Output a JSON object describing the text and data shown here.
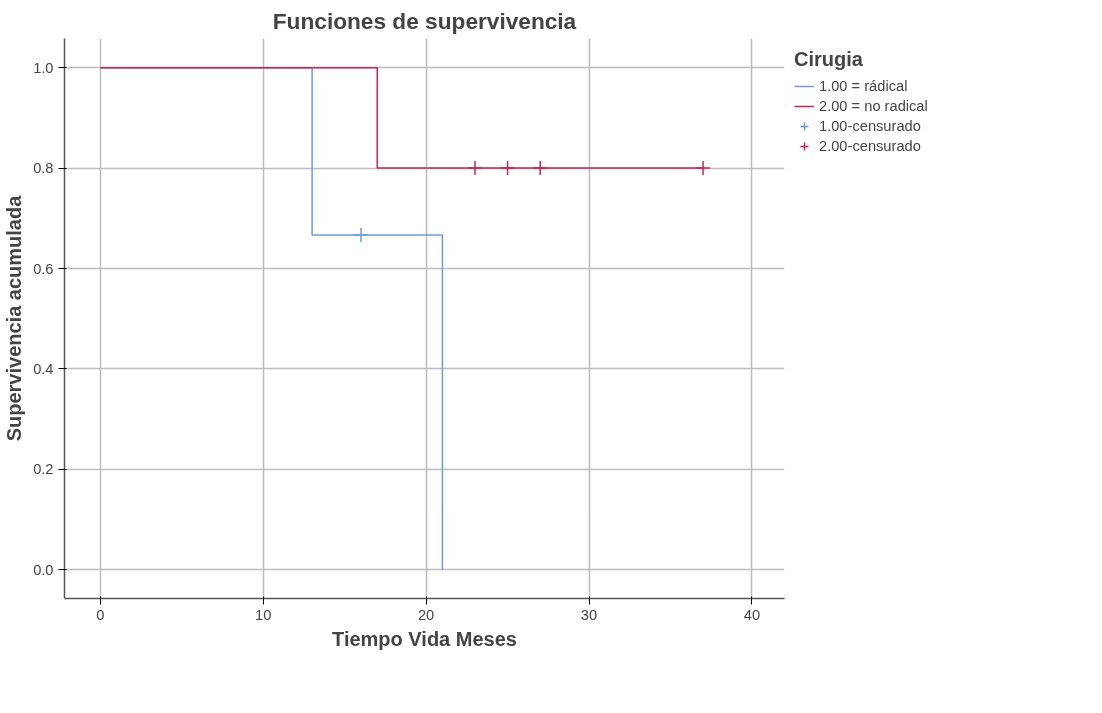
{
  "chart_data": {
    "type": "step",
    "title": "Funciones de supervivencia",
    "xlabel": "Tiempo Vida Meses",
    "ylabel": "Supervivencia acumulada",
    "legend_title": "Cirugia",
    "legend": "right",
    "grid": true,
    "line_style": "solid",
    "xlim": [
      -2.2,
      42
    ],
    "ylim": [
      -0.057,
      1.058
    ],
    "xticks": [
      0,
      10,
      20,
      30,
      40
    ],
    "yticks": [
      {
        "value": 0,
        "label": "0.0"
      },
      {
        "value": 0.2,
        "label": "0.2"
      },
      {
        "value": 0.4,
        "label": "0.4"
      },
      {
        "value": 0.6,
        "label": "0.6"
      },
      {
        "value": 0.8,
        "label": "0.8"
      },
      {
        "value": 1,
        "label": "1.0"
      }
    ],
    "series": [
      {
        "name": "1.00 = rádical",
        "color": "#6a9ce6",
        "x": [
          0,
          13,
          21
        ],
        "values": [
          1,
          0.667,
          0
        ]
      },
      {
        "name": "2.00 = no radical",
        "color": "#d51f4c",
        "x": [
          0,
          17,
          37
        ],
        "values": [
          1,
          0.8,
          0.8
        ]
      },
      {
        "name": "1.00-censurado",
        "color": "#6a9ce6",
        "type": "scatter",
        "marker": "cross",
        "x": [
          16
        ],
        "values": [
          0.667
        ]
      },
      {
        "name": "2.00-censurado",
        "color": "#d51f4c",
        "type": "scatter",
        "marker": "cross",
        "x": [
          23,
          25,
          27,
          37
        ],
        "values": [
          0.8,
          0.8,
          0.8,
          0.8
        ]
      }
    ]
  }
}
